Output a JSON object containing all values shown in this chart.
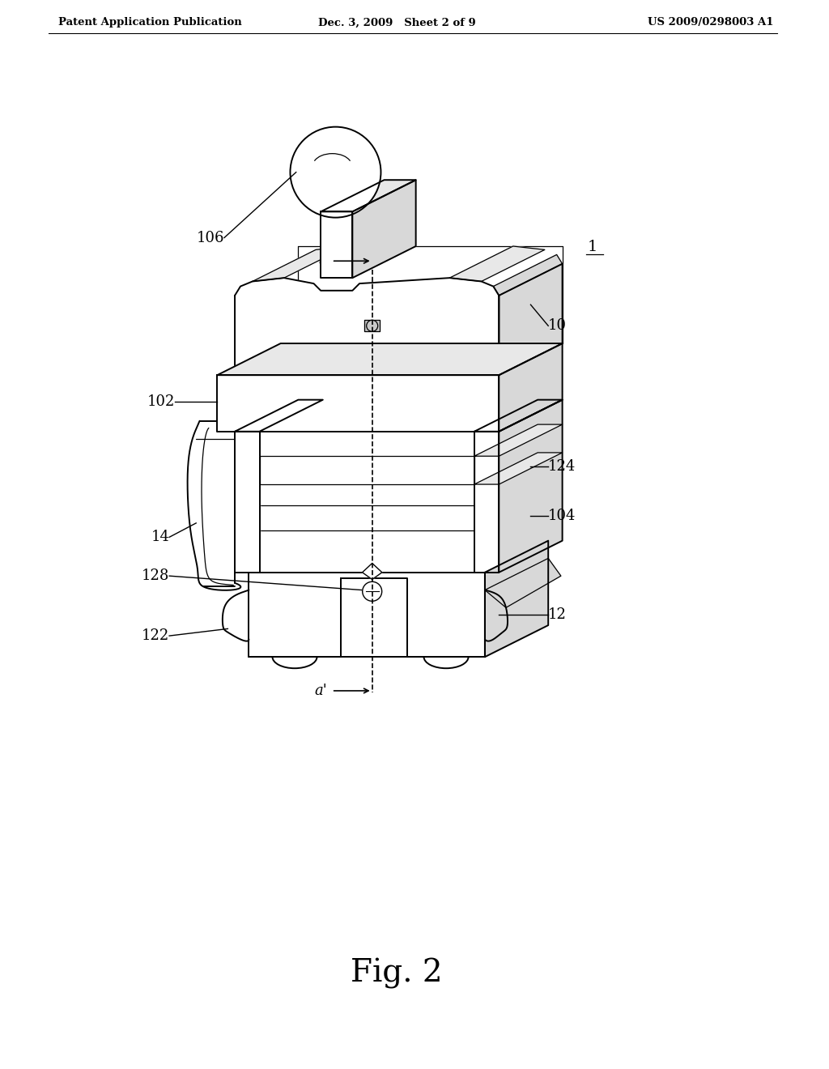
{
  "bg": "#ffffff",
  "lc": "#000000",
  "header_left": "Patent Application Publication",
  "header_mid": "Dec. 3, 2009   Sheet 2 of 9",
  "header_right": "US 2009/0298003 A1",
  "fig_label": "Fig. 2",
  "gray1": "#e8e8e8",
  "gray2": "#d8d8d8",
  "gray3": "#c8c8c8"
}
